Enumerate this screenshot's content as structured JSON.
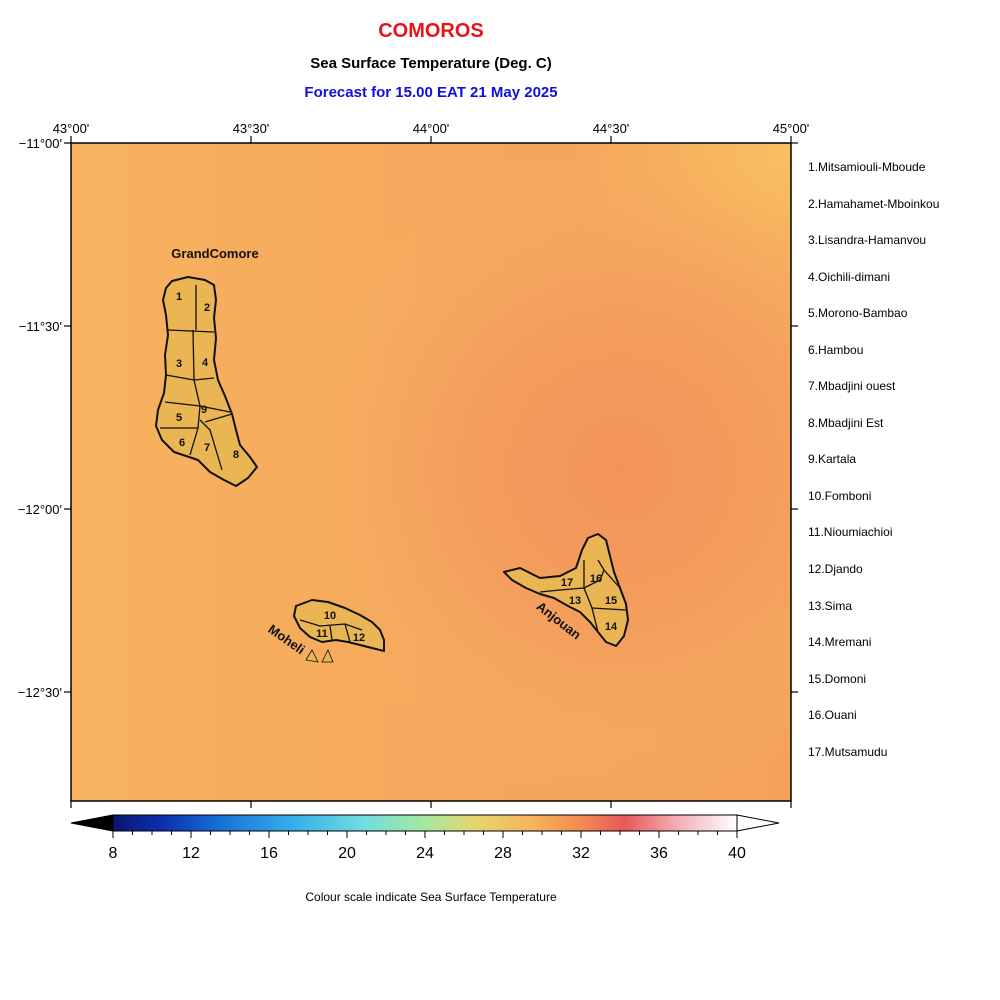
{
  "header": {
    "country": "COMOROS",
    "variable": "Sea Surface Temperature (Deg. C)",
    "forecast": "Forecast for  15.00 EAT 21 May 2025"
  },
  "axes": {
    "lon_labels": [
      "43°00'",
      "43°30'",
      "44°00'",
      "44°30'",
      "45°00'"
    ],
    "lat_labels": [
      "−11°00'",
      "−11°30'",
      "−12°00'",
      "−12°30'"
    ]
  },
  "islands": {
    "grand_comore": "GrandComore",
    "moheli": "Moheli",
    "anjouan": "Anjouan"
  },
  "region_numbers": [
    "1",
    "2",
    "3",
    "4",
    "5",
    "6",
    "7",
    "8",
    "9",
    "10",
    "11",
    "12",
    "13",
    "14",
    "15",
    "16",
    "17"
  ],
  "regions": [
    "1.Mitsamiouli-Mboude",
    "2.Hamahamet-Mboinkou",
    "3.Lisandra-Hamanvou",
    "4.Oichili-dimani",
    "5.Morono-Bambao",
    "6.Hambou",
    "7.Mbadjini ouest",
    "8.Mbadjini Est",
    "9.Kartala",
    "10.Fomboni",
    "11.Nioumiachioi",
    "12.Djando",
    "13.Sima",
    "14.Mremani",
    "15.Domoni",
    "16.Ouani",
    "17.Mutsamudu"
  ],
  "colorbar": {
    "ticks": [
      "8",
      "12",
      "16",
      "20",
      "24",
      "28",
      "32",
      "36",
      "40"
    ],
    "caption": "Colour scale indicate Sea Surface Temperature"
  },
  "colors": {
    "title": "#e8131b",
    "forecast": "#1010d8",
    "sea_warm": "#f5a35f",
    "land": "#eab553"
  }
}
